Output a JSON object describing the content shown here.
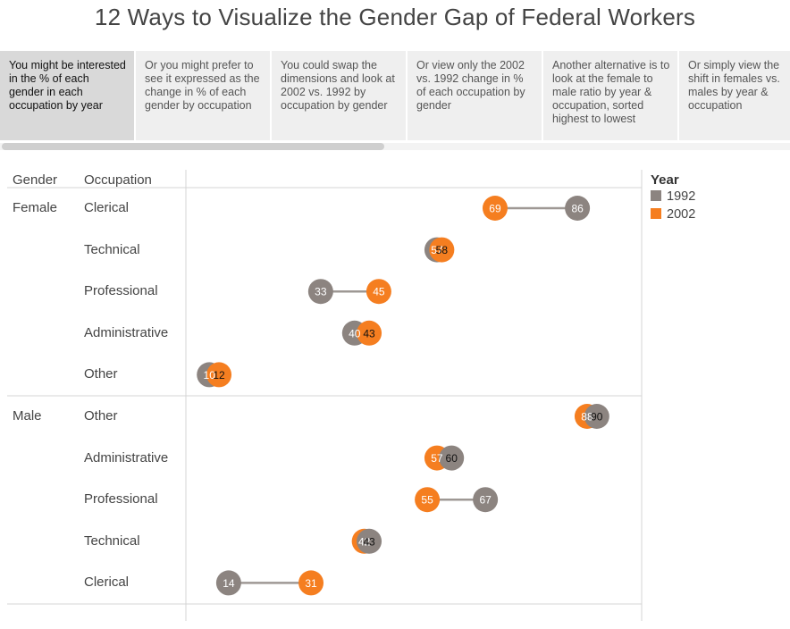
{
  "title": "12 Ways to Visualize the Gender Gap of Federal Workers",
  "tabs": [
    {
      "label": "You might be interested in the % of each gender in each occupation by year",
      "active": true
    },
    {
      "label": "Or you might prefer to see it expressed as the change in % of each gender by occupation",
      "active": false
    },
    {
      "label": "You could swap the dimensions and look at 2002 vs. 1992 by occupation by gender",
      "active": false
    },
    {
      "label": "Or view only the 2002 vs. 1992 change in % of each occupation by gender",
      "active": false
    },
    {
      "label": "Another alternative is to look at the female to male ratio by year & occupation, sorted highest to lowest",
      "active": false
    },
    {
      "label": "Or simply view the shift in females vs. males by year & occupation",
      "active": false
    }
  ],
  "colors": {
    "y1992": "#8c8480",
    "y2002": "#f57e20",
    "connector": "#9e9894"
  },
  "chart_data": {
    "type": "scatter",
    "subtype": "dumbbell",
    "headers": {
      "gender": "Gender",
      "occupation": "Occupation"
    },
    "legend": {
      "title": "Year",
      "entries": [
        "1992",
        "2002"
      ],
      "position": "right"
    },
    "xlim": [
      0,
      100
    ],
    "rows": [
      {
        "gender": "Female",
        "occupation": "Clerical",
        "v1992": 86,
        "v2002": 69
      },
      {
        "gender": "",
        "occupation": "Technical",
        "v1992": 57,
        "v2002": 58
      },
      {
        "gender": "",
        "occupation": "Professional",
        "v1992": 33,
        "v2002": 45
      },
      {
        "gender": "",
        "occupation": "Administrative",
        "v1992": 40,
        "v2002": 43
      },
      {
        "gender": "",
        "occupation": "Other",
        "v1992": 10,
        "v2002": 12
      },
      {
        "gender": "Male",
        "occupation": "Other",
        "v1992": 90,
        "v2002": 88
      },
      {
        "gender": "",
        "occupation": "Administrative",
        "v1992": 60,
        "v2002": 57
      },
      {
        "gender": "",
        "occupation": "Professional",
        "v1992": 67,
        "v2002": 55
      },
      {
        "gender": "",
        "occupation": "Technical",
        "v1992": 43,
        "v2002": 42
      },
      {
        "gender": "",
        "occupation": "Clerical",
        "v1992": 14,
        "v2002": 31
      }
    ]
  }
}
